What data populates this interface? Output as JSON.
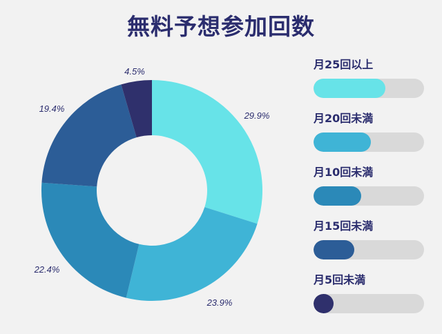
{
  "title": "無料予想参加回数",
  "chart_data": {
    "type": "donut",
    "title": "無料予想参加回数",
    "slices": [
      {
        "label": "月25回以上",
        "value": 29.9,
        "display": "29.9%",
        "color": "#67e3e8"
      },
      {
        "label": "月20回未満",
        "value": 23.9,
        "display": "23.9%",
        "color": "#3fb4d6"
      },
      {
        "label": "月10回未満",
        "value": 22.4,
        "display": "22.4%",
        "color": "#2b89b8"
      },
      {
        "label": "月15回未満",
        "value": 19.4,
        "display": "19.4%",
        "color": "#2c5d97"
      },
      {
        "label": "月5回未満",
        "value": 4.5,
        "display": "4.5%",
        "color": "#2f306c"
      }
    ],
    "legend": {
      "placement": "right",
      "items": [
        {
          "label": "月25回以上",
          "level": 0.65,
          "color": "#67e3e8"
        },
        {
          "label": "月20回未満",
          "level": 0.52,
          "color": "#3fb4d6"
        },
        {
          "label": "月10回未満",
          "level": 0.43,
          "color": "#2b89b8"
        },
        {
          "label": "月15回未満",
          "level": 0.37,
          "color": "#2c5d97"
        },
        {
          "label": "月5回未満",
          "level": 0.18,
          "color": "#2f306c"
        }
      ]
    }
  }
}
